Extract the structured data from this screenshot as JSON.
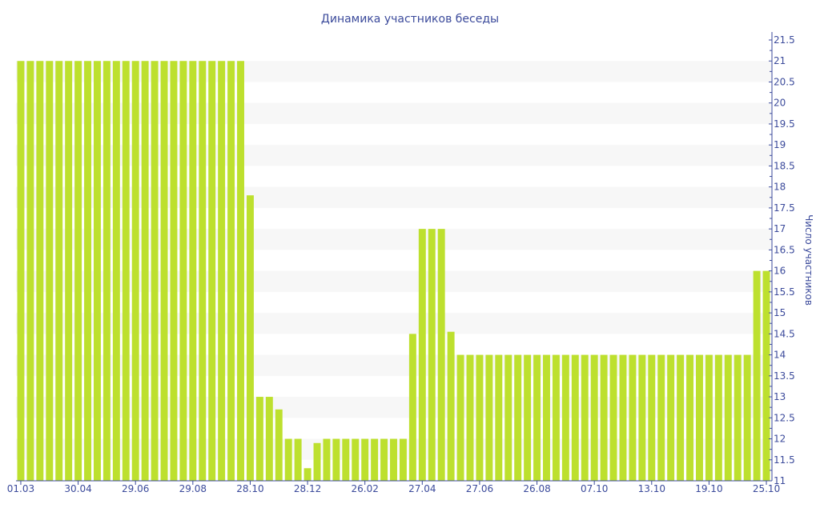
{
  "chart_data": {
    "type": "bar",
    "title": "Динамика участников беседы",
    "xlabel": "",
    "ylabel": "Число участников",
    "ylim": [
      11,
      21.5
    ],
    "y_ticks": [
      "11",
      "11.5",
      "12",
      "12.5",
      "13",
      "13.5",
      "14",
      "14.5",
      "15",
      "15.5",
      "16",
      "16.5",
      "17",
      "17.5",
      "18",
      "18.5",
      "19",
      "19.5",
      "20",
      "20.5",
      "21",
      "21.5"
    ],
    "y_axis_position": "right",
    "x_tick_labels": [
      {
        "bar": 0,
        "label": "01.03"
      },
      {
        "bar": 6,
        "label": "30.04"
      },
      {
        "bar": 12,
        "label": "29.06"
      },
      {
        "bar": 18,
        "label": "29.08"
      },
      {
        "bar": 24,
        "label": "28.10"
      },
      {
        "bar": 30,
        "label": "28.12"
      },
      {
        "bar": 36,
        "label": "26.02"
      },
      {
        "bar": 42,
        "label": "27.04"
      },
      {
        "bar": 48,
        "label": "27.06"
      },
      {
        "bar": 54,
        "label": "26.08"
      },
      {
        "bar": 60,
        "label": "07.10"
      },
      {
        "bar": 66,
        "label": "13.10"
      },
      {
        "bar": 72,
        "label": "19.10"
      },
      {
        "bar": 78,
        "label": "25.10"
      }
    ],
    "values": [
      21,
      21,
      21,
      21,
      21,
      21,
      21,
      21,
      21,
      21,
      21,
      21,
      21,
      21,
      21,
      21,
      21,
      21,
      21,
      21,
      21,
      21,
      21,
      21,
      17.8,
      13,
      13,
      12.7,
      12,
      12,
      11.3,
      11.9,
      12,
      12,
      12,
      12,
      12,
      12,
      12,
      12,
      12,
      14.5,
      17,
      17,
      17,
      14.55,
      14,
      14,
      14,
      14,
      14,
      14,
      14,
      14,
      14,
      14,
      14,
      14,
      14,
      14,
      14,
      14,
      14,
      14,
      14,
      14,
      14,
      14,
      14,
      14,
      14,
      14,
      14,
      14,
      14,
      14,
      14,
      16,
      16
    ],
    "grid": "alternating horizontal bands",
    "colors": {
      "bar": "#bde02e",
      "axis": "#3b4a9b",
      "band": "#f7f7f7"
    }
  }
}
